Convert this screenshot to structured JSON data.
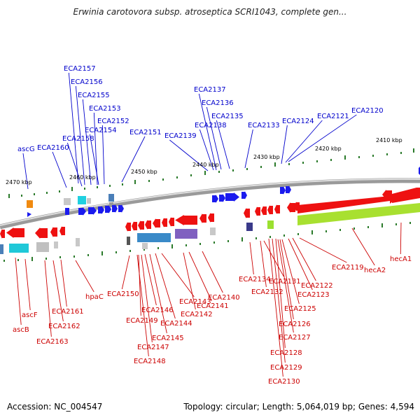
{
  "title": "Erwinia carotovora subsp. atroseptica SCRI1043, complete gen...",
  "footer": {
    "accession": "Accession: NC_004547",
    "summary": "Topology: circular; Length: 5,064,019 bp; Genes: 4,594"
  },
  "colors": {
    "forward_label": "#0000cc",
    "reverse_label": "#cc0000",
    "backbone": "#a0a0a0",
    "tick": "#2a7a2a"
  },
  "scale_labels": [
    "2470 kbp",
    "2460 kbp",
    "2450 kbp",
    "2440 kbp",
    "2430 kbp",
    "2420 kbp",
    "2410 kbp"
  ],
  "forward_genes": [
    "ECA2157",
    "ECA2156",
    "ECA2155",
    "ECA2153",
    "ECA2152",
    "ECA2154",
    "ECA2158",
    "ascG",
    "ECA2160",
    "ECA2151",
    "ECA2137",
    "ECA2136",
    "ECA2135",
    "ECA2138",
    "ECA2139",
    "ECA2133",
    "ECA2124",
    "ECA2121",
    "ECA2120"
  ],
  "reverse_genes": [
    "ascB",
    "ascF",
    "ECA2163",
    "ECA2162",
    "ECA2161",
    "hpaC",
    "ECA2150",
    "ECA2149",
    "ECA2146",
    "ECA2147",
    "ECA2148",
    "ECA2145",
    "ECA2144",
    "ECA2143",
    "ECA2142",
    "ECA2141",
    "ECA2140",
    "ECA2134",
    "ECA2132",
    "ECA2131",
    "ECA2125",
    "ECA2126",
    "ECA2127",
    "ECA2128",
    "ECA2129",
    "ECA2130",
    "ECA2123",
    "ECA2122",
    "ECA2119",
    "hecA2",
    "hecA1"
  ]
}
